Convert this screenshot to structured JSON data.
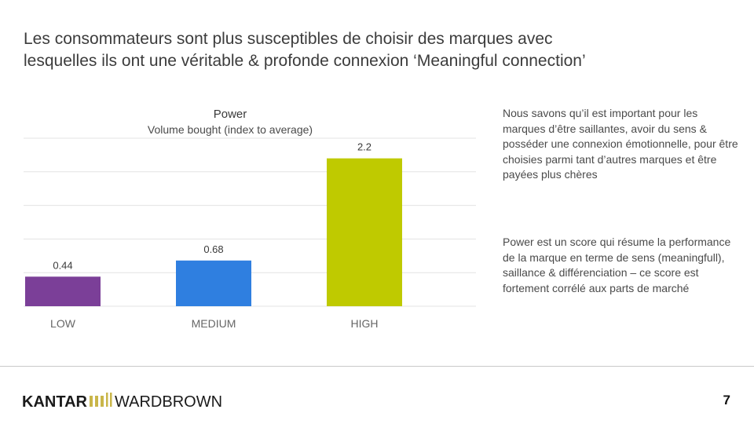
{
  "slide": {
    "title_line1": "Les consommateurs sont plus susceptibles de choisir des marques avec",
    "title_line2": "lesquelles ils ont une véritable & profonde connexion ‘Meaningful connection’",
    "side_text_1": "Nous savons qu’il est important pour les marques d’être saillantes, avoir du sens & posséder une connexion émotionnelle, pour être choisies parmi tant d’autres marques et être payées plus chères",
    "side_text_2": "Power est un score qui résume la performance de la marque en terme de sens (meaningfull), saillance & différenciation – ce score est fortement corrélé aux parts de marché",
    "page_number": "7"
  },
  "logo": {
    "brand_left": "KANTAR",
    "brand_right": "WARDBROWN",
    "left_color": "#1a1a1a",
    "accent_color": "#c9b64a"
  },
  "colors": {
    "gridline": "#e3e3e3",
    "label": "#3a3a3a",
    "category": "#666666"
  },
  "chart_data": {
    "type": "bar",
    "title": "Power",
    "subtitle": "Volume bought (index to average)",
    "categories": [
      "LOW",
      "MEDIUM",
      "HIGH"
    ],
    "values": [
      0.44,
      0.68,
      2.2
    ],
    "value_labels": [
      "0.44",
      "0.68",
      "2.2"
    ],
    "bar_colors": [
      "#7b3f98",
      "#2f7fe0",
      "#bfca00"
    ],
    "ylim": [
      0,
      2.5
    ],
    "grid": true,
    "legend": "none"
  }
}
